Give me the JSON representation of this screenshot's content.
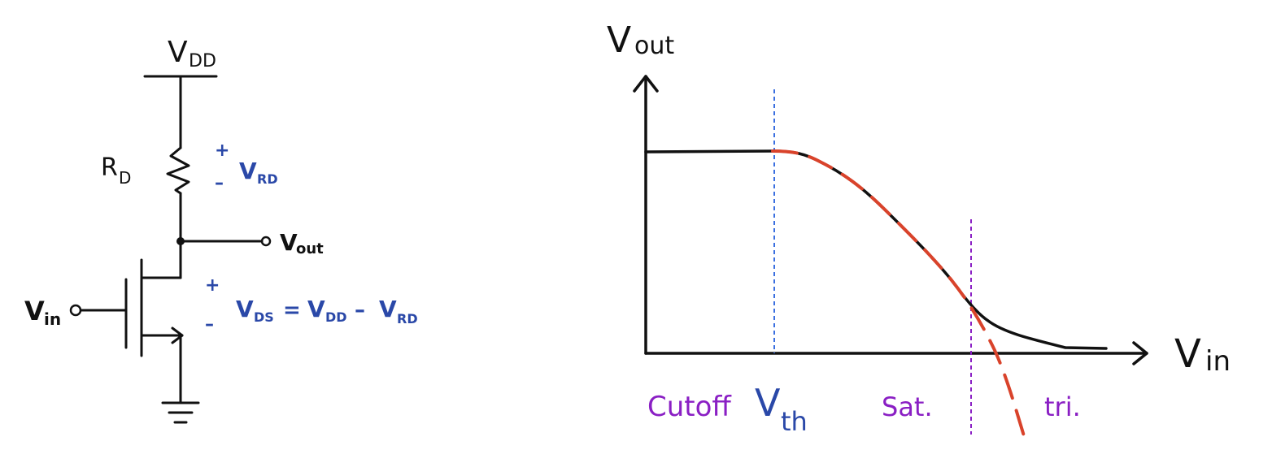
{
  "circuit": {
    "supply_label": "V",
    "supply_sub": "DD",
    "resistor_label": "R",
    "resistor_sub": "D",
    "vrd_plus": "+",
    "vrd_minus": "–",
    "vrd_label": "V",
    "vrd_sub": "RD",
    "output_label": "V",
    "output_sub": "out",
    "input_label": "V",
    "input_sub": "in",
    "vds_plus": "+",
    "vds_minus": "–",
    "vds_lhs": "V",
    "vds_lhs_sub": "DS",
    "vds_eq": "=",
    "vds_rhs1": "V",
    "vds_rhs1_sub": "DD",
    "vds_op": "–",
    "vds_rhs2": "V",
    "vds_rhs2_sub": "RD"
  },
  "graph": {
    "y_axis_label": "V",
    "y_axis_sub": "out",
    "x_axis_label": "V",
    "x_axis_sub": "in",
    "region_cutoff": "Cutoff",
    "threshold_label": "V",
    "threshold_sub": "th",
    "region_sat": "Sat.",
    "region_tri": "tri."
  },
  "colors": {
    "ink": "#111111",
    "blue_annotation": "#2a48a8",
    "blue_dashed": "#3a6fe0",
    "purple": "#8a1fc4",
    "red_dashed": "#d9432b"
  }
}
